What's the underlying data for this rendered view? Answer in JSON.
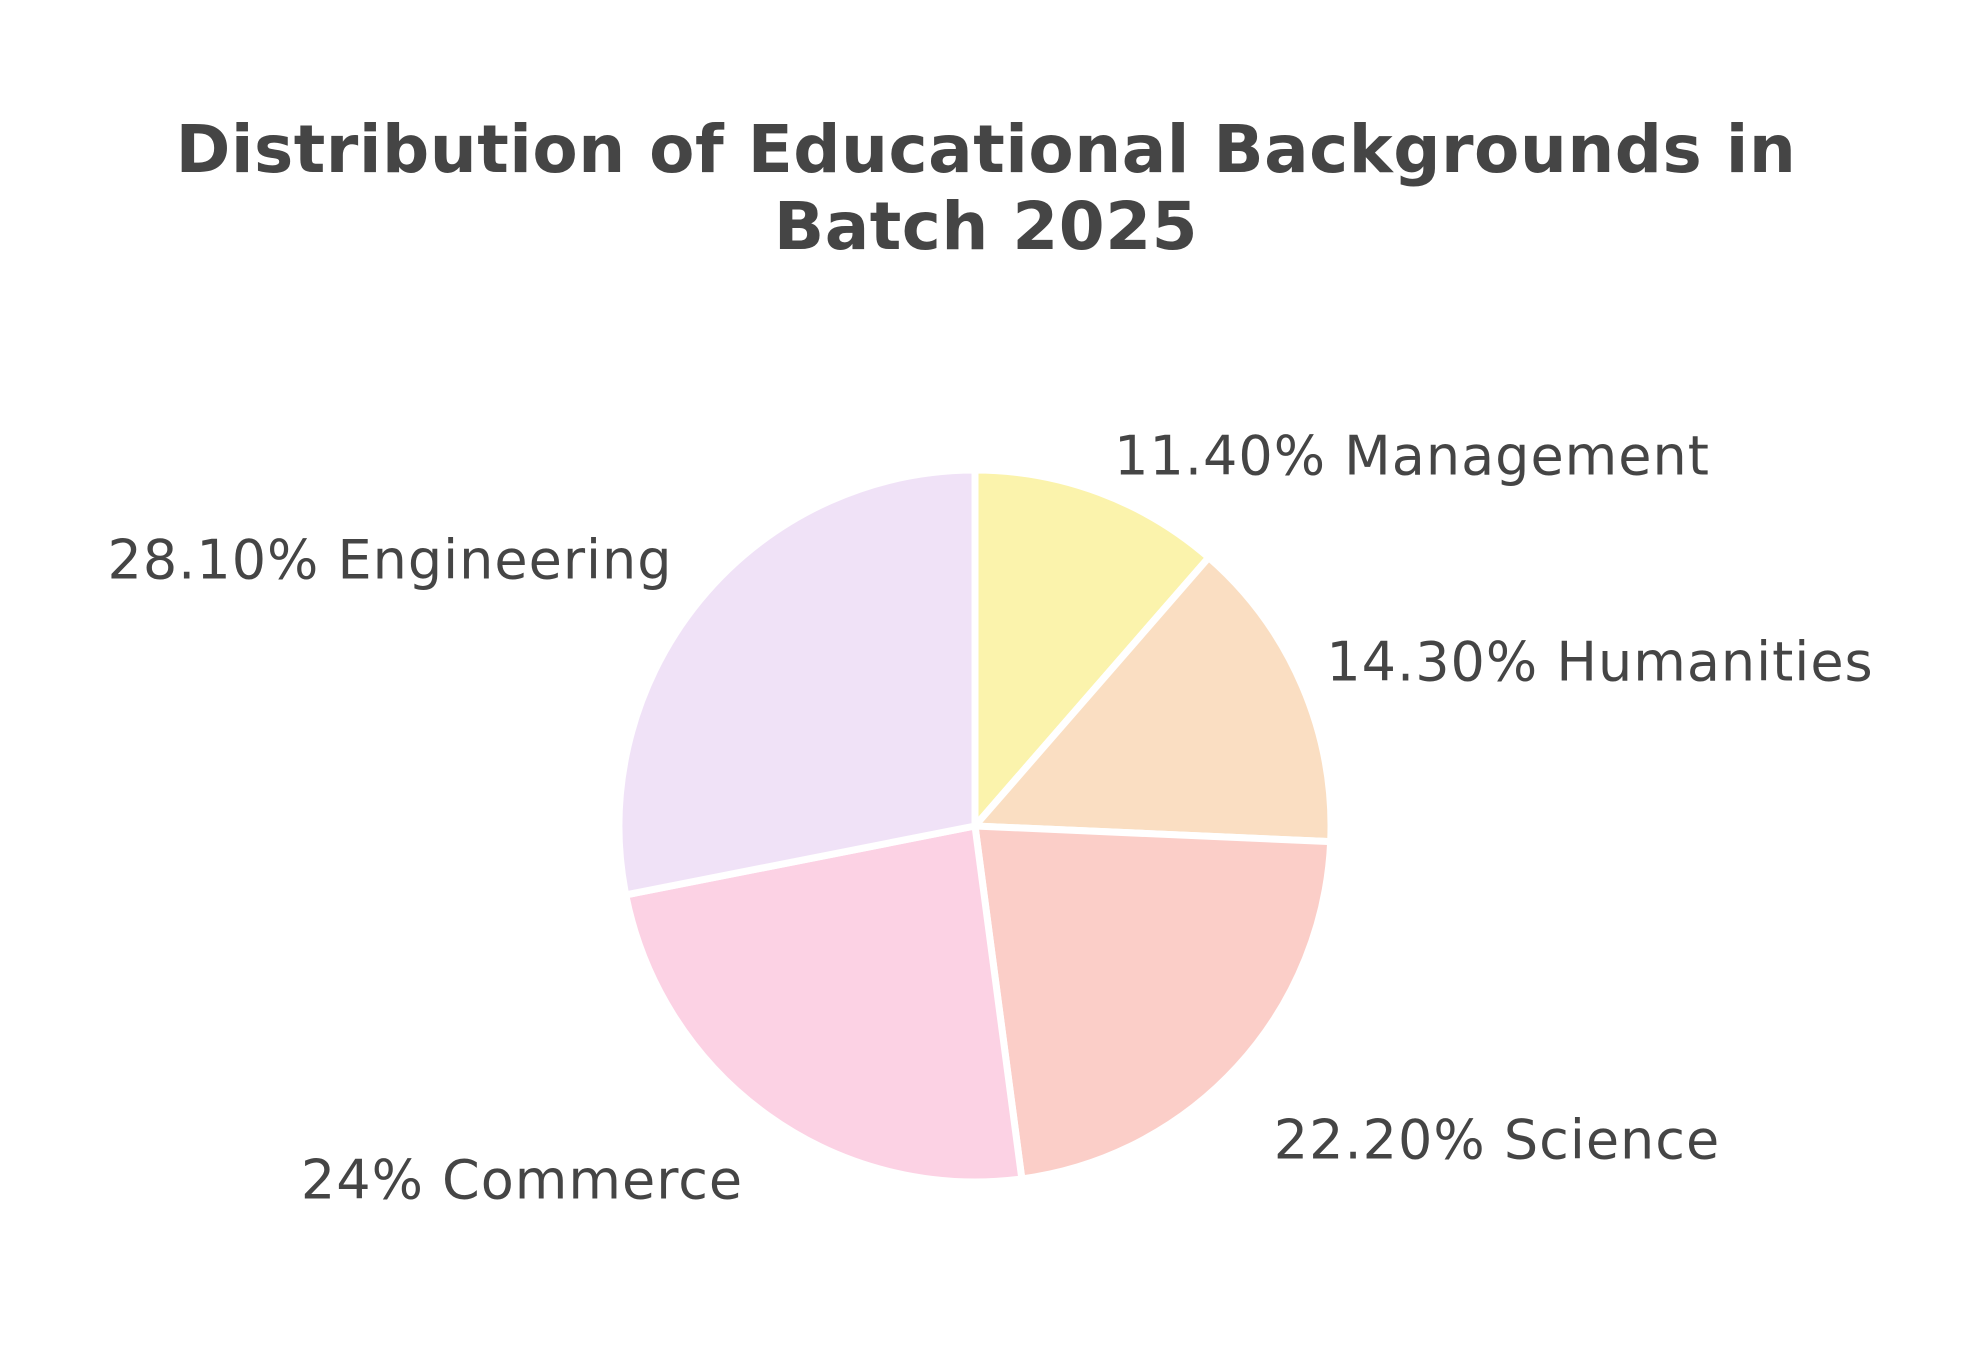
{
  "page": {
    "background_color": "#FFFFFF",
    "text_color": "#454545"
  },
  "chart_data": {
    "type": "pie",
    "title": "Distribution of Educational Backgrounds in Batch 2025",
    "title_lines": [
      "Distribution of Educational Backgrounds in",
      "Batch 2025"
    ],
    "start_angle": "12-o-clock",
    "direction": "clockwise",
    "grid": false,
    "legend_position": "none (direct labels around pie)",
    "slice_border_color": "#FFFFFF",
    "categories": [
      "Management",
      "Humanities",
      "Science",
      "Commerce",
      "Engineering"
    ],
    "values": [
      11.4,
      14.3,
      22.2,
      24,
      28.1
    ],
    "slices": [
      {
        "label": "Management",
        "value": 11.4,
        "display_label": "11.40% Management",
        "color": "#FBF3AC"
      },
      {
        "label": "Humanities",
        "value": 14.3,
        "display_label": "14.30% Humanities",
        "color": "#FADEC2"
      },
      {
        "label": "Science",
        "value": 22.2,
        "display_label": "22.20% Science",
        "color": "#FBCEC8"
      },
      {
        "label": "Commerce",
        "value": 24,
        "display_label": "24% Commerce",
        "color": "#FCD2E4"
      },
      {
        "label": "Engineering",
        "value": 28.1,
        "display_label": "28.10% Engineering",
        "color": "#F0E2F7"
      }
    ]
  }
}
